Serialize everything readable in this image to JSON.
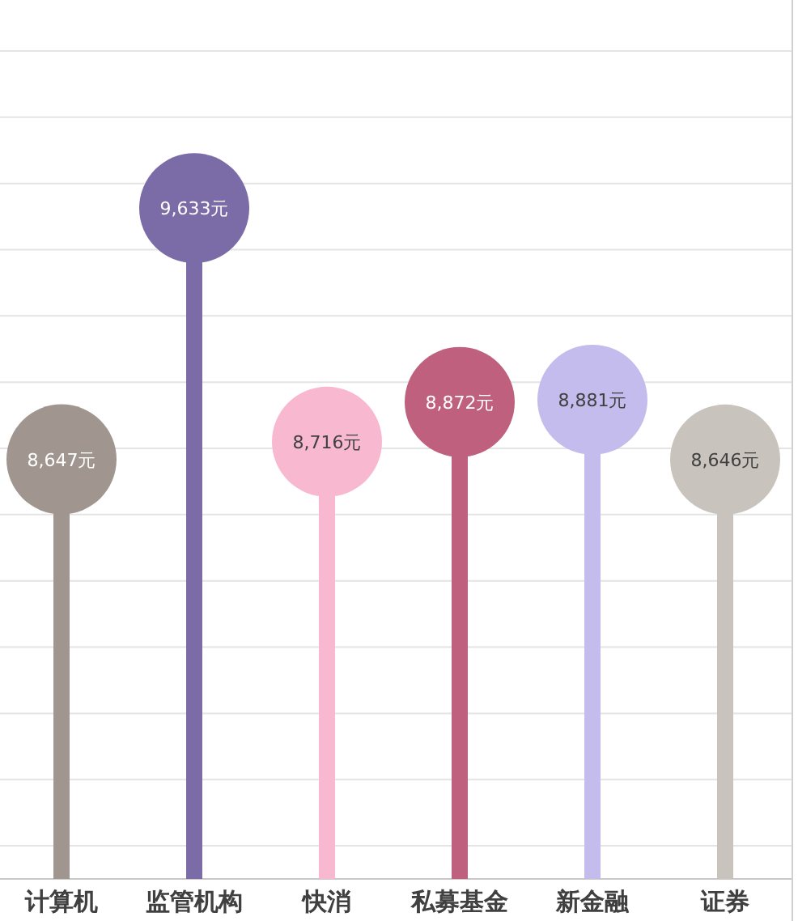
{
  "chart_data": {
    "type": "lollipop",
    "categories": [
      "计算机",
      "监管机构",
      "快消",
      "私募基金",
      "新金融",
      "证券"
    ],
    "values": [
      8647,
      9633,
      8716,
      8872,
      8881,
      8646
    ],
    "value_labels": [
      "8,647元",
      "9,633元",
      "8,716元",
      "8,872元",
      "8,881元",
      "8,646元"
    ],
    "colors": [
      "#a0968f",
      "#7b6ca8",
      "#f8b9d0",
      "#c0607f",
      "#c4bcec",
      "#c9c3be"
    ],
    "ylim": [
      7000,
      10450
    ],
    "yticks": [
      {
        "value": 7130,
        "label": null
      },
      {
        "value": 7390,
        "label": null
      },
      {
        "value": 7650,
        "label": null
      },
      {
        "value": 7910,
        "label": null
      },
      {
        "value": 8170,
        "label": null
      },
      {
        "value": 8430,
        "label": null
      },
      {
        "value": 8690,
        "label": null
      },
      {
        "value": 8950,
        "label": null
      },
      {
        "value": 9210,
        "label": null
      },
      {
        "value": 9470,
        "label": null
      },
      {
        "value": 9730,
        "label": null
      },
      {
        "value": 9990,
        "label": null
      },
      {
        "value": 10250,
        "label": null
      }
    ],
    "grid": "y",
    "tick_labels": "x"
  }
}
